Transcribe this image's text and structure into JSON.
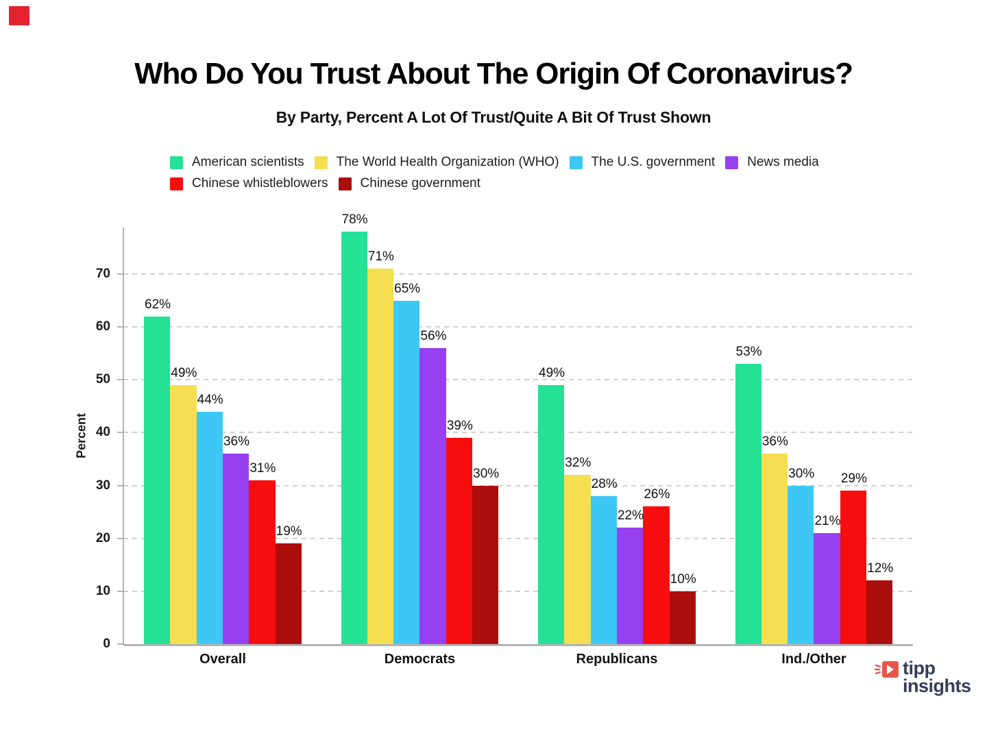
{
  "brand_mark": {
    "color": "#e42330"
  },
  "header": {
    "title": "Who Do You Trust About The Origin Of Coronavirus?",
    "subtitle": "By Party, Percent A Lot Of Trust/Quite A Bit Of Trust Shown"
  },
  "chart_data": {
    "type": "bar",
    "title": "Who Do You Trust About The Origin Of Coronavirus?",
    "subtitle": "By Party, Percent A Lot Of Trust/Quite A Bit Of Trust Shown",
    "categories": [
      "Overall",
      "Democrats",
      "Republicans",
      "Ind./Other"
    ],
    "series": [
      {
        "name": "American scientists",
        "color": "#24e196",
        "values": [
          62,
          78,
          49,
          53
        ]
      },
      {
        "name": "The World Health Organization (WHO)",
        "color": "#f5de4f",
        "values": [
          49,
          71,
          32,
          36
        ]
      },
      {
        "name": "The U.S. government",
        "color": "#3dc7f4",
        "values": [
          44,
          65,
          28,
          30
        ]
      },
      {
        "name": "News media",
        "color": "#9640f2",
        "values": [
          36,
          56,
          22,
          21
        ]
      },
      {
        "name": "Chinese whistleblowers",
        "color": "#f70d0d",
        "values": [
          31,
          39,
          26,
          29
        ]
      },
      {
        "name": "Chinese government",
        "color": "#ac0d0d",
        "values": [
          19,
          30,
          10,
          12
        ]
      }
    ],
    "xlabel": "",
    "ylabel": "Percent",
    "yticks": [
      0,
      10,
      20,
      30,
      40,
      50,
      60,
      70
    ],
    "ylim": [
      0,
      79
    ],
    "grid": "horizontal-dashed",
    "legend_position": "top",
    "value_label_suffix": "%",
    "gridline_color": "#cfcfcf",
    "axis_color": "#b3b3b3"
  },
  "footer_logo": {
    "line1": "tipp",
    "line2": "insights",
    "text_color": "#373c5b",
    "icon_color": "#e8554a"
  }
}
